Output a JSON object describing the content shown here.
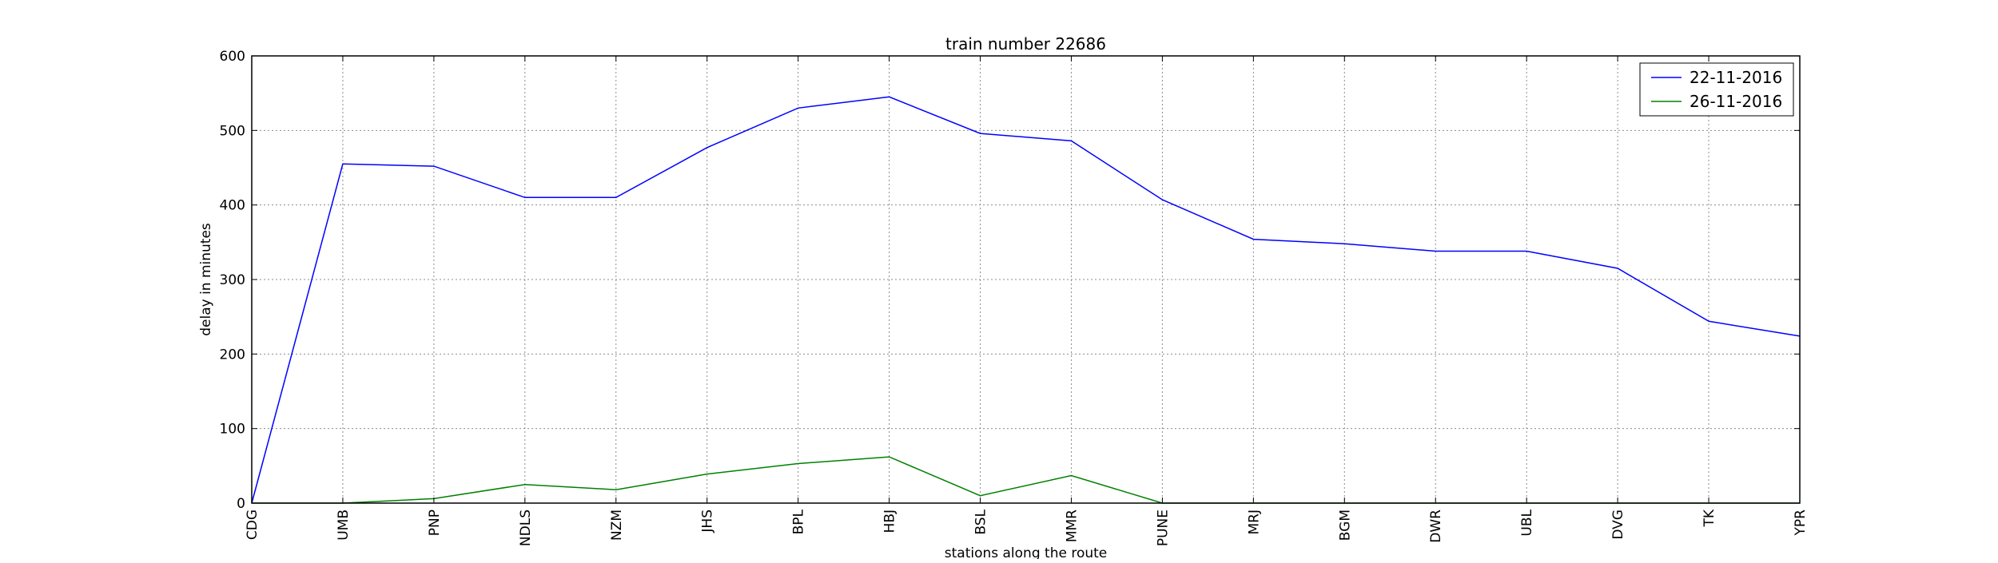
{
  "chart_data": {
    "type": "line",
    "title": "train number 22686",
    "xlabel": "stations along the route",
    "ylabel": "delay in minutes",
    "categories": [
      "CDG",
      "UMB",
      "PNP",
      "NDLS",
      "NZM",
      "JHS",
      "BPL",
      "HBJ",
      "BSL",
      "MMR",
      "PUNE",
      "MRJ",
      "BGM",
      "DWR",
      "UBL",
      "DVG",
      "TK",
      "YPR"
    ],
    "ylim": [
      0,
      600
    ],
    "yticks": [
      0,
      100,
      200,
      300,
      400,
      500,
      600
    ],
    "grid": true,
    "legend_position": "top-right",
    "series": [
      {
        "name": "22-11-2016",
        "color": "#0000ff",
        "values": [
          0,
          455,
          452,
          410,
          410,
          477,
          530,
          545,
          496,
          486,
          407,
          354,
          348,
          338,
          338,
          315,
          244,
          224
        ]
      },
      {
        "name": "26-11-2016",
        "color": "#008000",
        "values": [
          0,
          0,
          6,
          25,
          18,
          39,
          53,
          62,
          10,
          37,
          0,
          0,
          0,
          0,
          0,
          0,
          0,
          0
        ]
      }
    ]
  }
}
